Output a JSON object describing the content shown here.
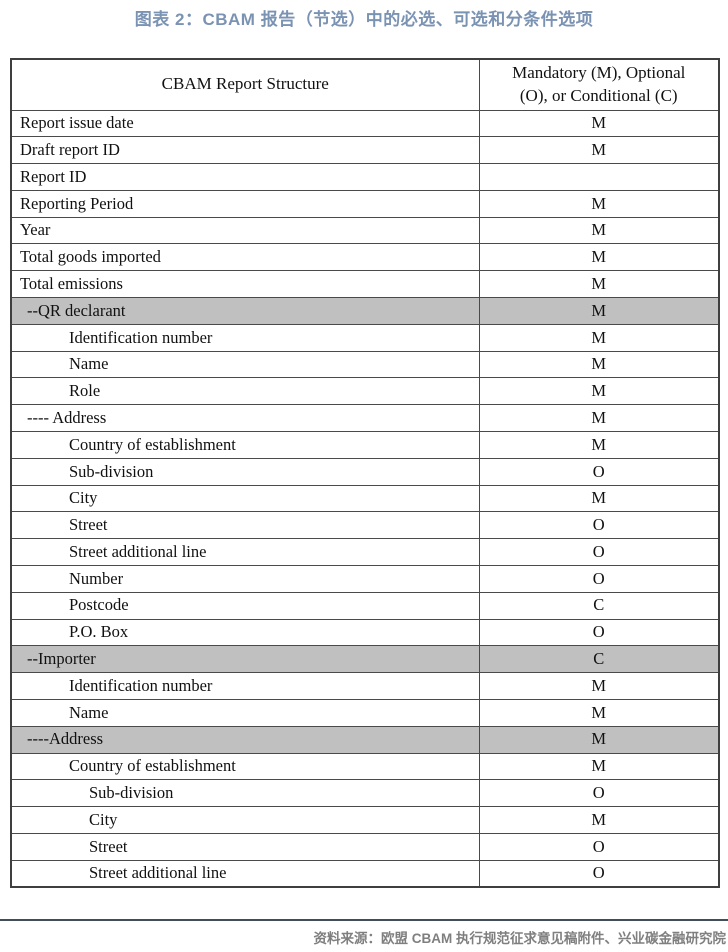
{
  "title": "图表 2：CBAM 报告（节选）中的必选、可选和分条件选项",
  "source": "资料来源：欧盟 CBAM 执行规范征求意见稿附件、兴业碳金融研究院",
  "colors": {
    "title_blue": "#7b93b3",
    "gray_row_bg": "#c0c0c0",
    "source_gray": "#7f7f7f",
    "divider_dark": "#434c59"
  },
  "table": {
    "col1_header": "CBAM Report Structure",
    "col2_header": "Mandatory (M), Optional (O), or Conditional (C)",
    "rows": [
      {
        "label": "Report issue date",
        "value": "M",
        "level": 0,
        "gray": false
      },
      {
        "label": "Draft report ID",
        "value": "M",
        "level": 0,
        "gray": false
      },
      {
        "label": "Report ID",
        "value": "",
        "level": 0,
        "gray": false
      },
      {
        "label": "Reporting Period",
        "value": "M",
        "level": 0,
        "gray": false
      },
      {
        "label": "Year",
        "value": "M",
        "level": 0,
        "gray": false
      },
      {
        "label": "Total goods imported",
        "value": "M",
        "level": 0,
        "gray": false
      },
      {
        "label": "Total emissions",
        "value": "M",
        "level": 0,
        "gray": false
      },
      {
        "label": "--QR declarant",
        "value": "M",
        "level": 1,
        "gray": true
      },
      {
        "label": "Identification number",
        "value": "M",
        "level": 2,
        "gray": false
      },
      {
        "label": "Name",
        "value": "M",
        "level": 2,
        "gray": false
      },
      {
        "label": "Role",
        "value": "M",
        "level": 2,
        "gray": false
      },
      {
        "label": "---- Address",
        "value": "M",
        "level": 1,
        "gray": false
      },
      {
        "label": "Country of establishment",
        "value": "M",
        "level": 2,
        "gray": false
      },
      {
        "label": "Sub-division",
        "value": "O",
        "level": 2,
        "gray": false
      },
      {
        "label": "City",
        "value": "M",
        "level": 2,
        "gray": false
      },
      {
        "label": "Street",
        "value": "O",
        "level": 2,
        "gray": false
      },
      {
        "label": "Street additional line",
        "value": "O",
        "level": 2,
        "gray": false
      },
      {
        "label": "Number",
        "value": "O",
        "level": 2,
        "gray": false
      },
      {
        "label": "Postcode",
        "value": "C",
        "level": 2,
        "gray": false
      },
      {
        "label": "P.O. Box",
        "value": "O",
        "level": 2,
        "gray": false
      },
      {
        "label": "--Importer",
        "value": "C",
        "level": 1,
        "gray": true
      },
      {
        "label": "Identification number",
        "value": "M",
        "level": 2,
        "gray": false
      },
      {
        "label": "Name",
        "value": "M",
        "level": 2,
        "gray": false
      },
      {
        "label": "----Address",
        "value": "M",
        "level": 1,
        "gray": true
      },
      {
        "label": "Country of establishment",
        "value": "M",
        "level": 2,
        "gray": false
      },
      {
        "label": "Sub-division",
        "value": "O",
        "level": 3,
        "gray": false
      },
      {
        "label": "City",
        "value": "M",
        "level": 3,
        "gray": false
      },
      {
        "label": "Street",
        "value": "O",
        "level": 3,
        "gray": false
      },
      {
        "label": "Street additional line",
        "value": "O",
        "level": 3,
        "gray": false
      }
    ]
  }
}
